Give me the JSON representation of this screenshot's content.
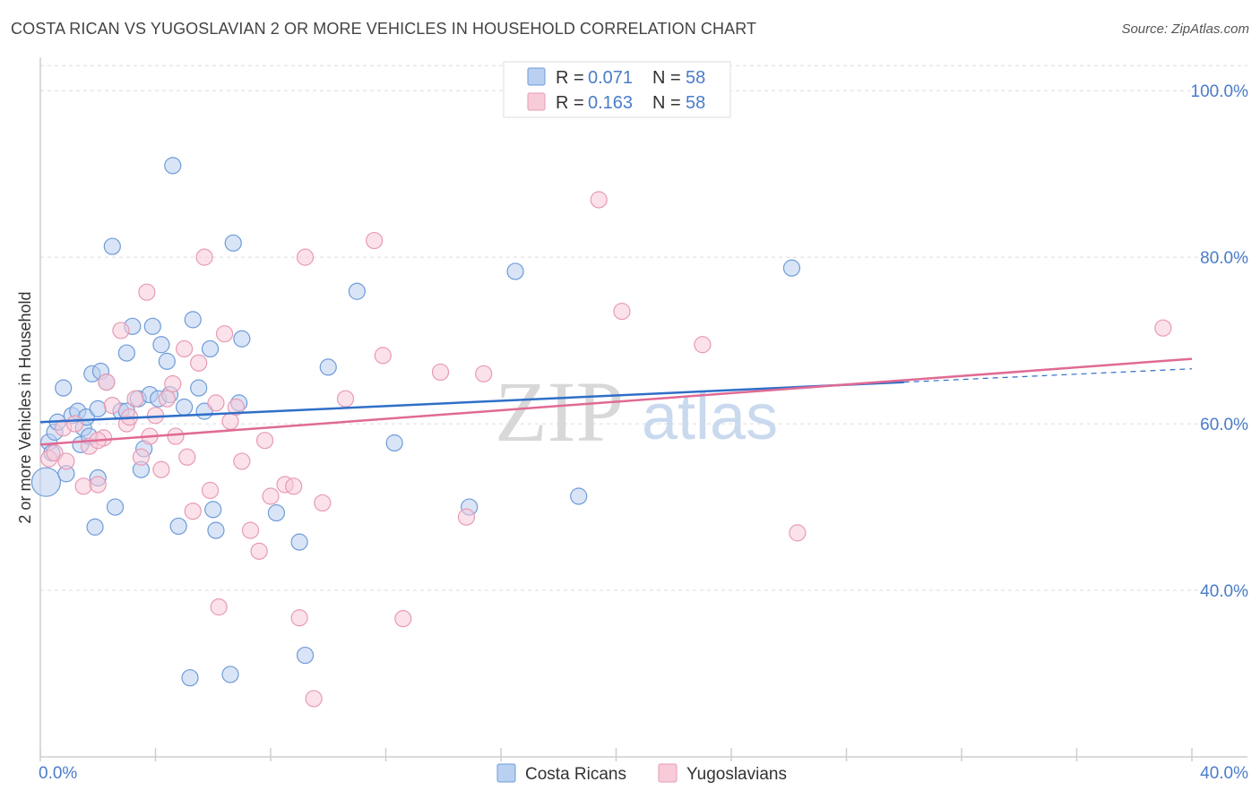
{
  "header": {
    "title": "COSTA RICAN VS YUGOSLAVIAN 2 OR MORE VEHICLES IN HOUSEHOLD CORRELATION CHART",
    "source": "Source: ZipAtlas.com"
  },
  "watermark": {
    "zip": "ZIP",
    "atlas": "atlas"
  },
  "chart_data": {
    "type": "scatter",
    "title": "COSTA RICAN VS YUGOSLAVIAN 2 OR MORE VEHICLES IN HOUSEHOLD CORRELATION CHART",
    "xlabel": "",
    "ylabel": "2 or more Vehicles in Household",
    "xlim": [
      0,
      40
    ],
    "ylim": [
      20,
      104
    ],
    "x_tick_labels": [
      "0.0%",
      "40.0%"
    ],
    "y_ticks": [
      40,
      60,
      80,
      100
    ],
    "y_tick_labels": [
      "40.0%",
      "60.0%",
      "80.0%",
      "100.0%"
    ],
    "grid": true,
    "legend_position": "top-center",
    "stats": [
      {
        "r_label": "R =",
        "r_value": "0.071",
        "n_label": "N =",
        "n_value": "58"
      },
      {
        "r_label": "R =",
        "r_value": "0.163",
        "n_label": "N =",
        "n_value": "58"
      }
    ],
    "series": [
      {
        "name": "Costa Ricans",
        "color": "#6e9bd8",
        "fill": "#b9d0f1",
        "trend": {
          "x0": 0,
          "y0": 60.2,
          "x1": 30,
          "y1": 65.0,
          "dash_to_x": 40,
          "dash_to_y": 66.6
        },
        "points": [
          [
            0.2,
            53
          ],
          [
            0.3,
            57.8
          ],
          [
            0.4,
            56.5
          ],
          [
            0.5,
            59
          ],
          [
            0.6,
            60.2
          ],
          [
            0.8,
            64.3
          ],
          [
            0.9,
            54
          ],
          [
            1.1,
            61
          ],
          [
            1.3,
            61.5
          ],
          [
            1.4,
            57.5
          ],
          [
            1.5,
            59.5
          ],
          [
            1.6,
            60.8
          ],
          [
            1.7,
            58.5
          ],
          [
            1.8,
            66
          ],
          [
            1.9,
            47.6
          ],
          [
            2.0,
            53.5
          ],
          [
            2.0,
            61.8
          ],
          [
            2.1,
            66.3
          ],
          [
            2.3,
            65
          ],
          [
            2.5,
            81.3
          ],
          [
            2.6,
            50
          ],
          [
            2.8,
            61.5
          ],
          [
            3.0,
            68.5
          ],
          [
            3.2,
            71.7
          ],
          [
            3.4,
            63
          ],
          [
            3.5,
            54.5
          ],
          [
            3.6,
            57
          ],
          [
            3.8,
            63.5
          ],
          [
            3.9,
            71.7
          ],
          [
            4.1,
            63
          ],
          [
            4.2,
            69.5
          ],
          [
            4.4,
            67.5
          ],
          [
            4.6,
            91
          ],
          [
            4.8,
            47.7
          ],
          [
            5.0,
            62
          ],
          [
            5.2,
            29.5
          ],
          [
            5.3,
            72.5
          ],
          [
            5.5,
            64.3
          ],
          [
            5.7,
            61.5
          ],
          [
            5.9,
            69
          ],
          [
            6.0,
            49.7
          ],
          [
            6.1,
            47.2
          ],
          [
            6.6,
            29.9
          ],
          [
            6.7,
            81.7
          ],
          [
            6.9,
            62.5
          ],
          [
            7.0,
            70.2
          ],
          [
            8.2,
            49.3
          ],
          [
            9.0,
            45.8
          ],
          [
            9.2,
            32.2
          ],
          [
            10.0,
            66.8
          ],
          [
            11.0,
            75.9
          ],
          [
            12.3,
            57.7
          ],
          [
            14.9,
            50
          ],
          [
            16.5,
            78.3
          ],
          [
            18.7,
            51.3
          ],
          [
            26.1,
            78.7
          ],
          [
            3.0,
            61.5
          ],
          [
            4.5,
            63.5
          ]
        ]
      },
      {
        "name": "Yugoslavians",
        "color": "#e89ab4",
        "fill": "#f8cbd9",
        "trend": {
          "x0": 0,
          "y0": 57.5,
          "x1": 40,
          "y1": 67.8
        },
        "points": [
          [
            0.3,
            55.8
          ],
          [
            0.5,
            56.5
          ],
          [
            0.8,
            59.5
          ],
          [
            0.9,
            55.5
          ],
          [
            1.2,
            60
          ],
          [
            1.5,
            52.5
          ],
          [
            1.7,
            57.3
          ],
          [
            2.0,
            52.7
          ],
          [
            2.2,
            58.3
          ],
          [
            2.3,
            65
          ],
          [
            2.5,
            62.2
          ],
          [
            2.8,
            71.2
          ],
          [
            3.0,
            60
          ],
          [
            3.1,
            60.8
          ],
          [
            3.3,
            63
          ],
          [
            3.5,
            56
          ],
          [
            3.7,
            75.8
          ],
          [
            3.8,
            58.5
          ],
          [
            4.0,
            61
          ],
          [
            4.2,
            54.5
          ],
          [
            4.4,
            63
          ],
          [
            4.6,
            64.8
          ],
          [
            4.7,
            58.5
          ],
          [
            5.0,
            69
          ],
          [
            5.1,
            56
          ],
          [
            5.3,
            49.5
          ],
          [
            5.5,
            67.3
          ],
          [
            5.7,
            80
          ],
          [
            5.9,
            52
          ],
          [
            6.1,
            62.5
          ],
          [
            6.2,
            38
          ],
          [
            6.4,
            70.8
          ],
          [
            6.6,
            60.3
          ],
          [
            6.8,
            62
          ],
          [
            7.0,
            55.5
          ],
          [
            7.3,
            47.2
          ],
          [
            7.6,
            44.7
          ],
          [
            7.8,
            58
          ],
          [
            8.0,
            51.3
          ],
          [
            8.5,
            52.7
          ],
          [
            8.8,
            52.5
          ],
          [
            9.0,
            36.7
          ],
          [
            9.2,
            80
          ],
          [
            9.5,
            27
          ],
          [
            9.8,
            50.5
          ],
          [
            10.6,
            63
          ],
          [
            11.6,
            82
          ],
          [
            11.9,
            68.2
          ],
          [
            12.6,
            36.6
          ],
          [
            13.9,
            66.2
          ],
          [
            14.8,
            48.8
          ],
          [
            15.4,
            66
          ],
          [
            19.4,
            86.9
          ],
          [
            20.2,
            73.5
          ],
          [
            23.0,
            69.5
          ],
          [
            26.3,
            46.9
          ],
          [
            39.0,
            71.5
          ],
          [
            2.0,
            58
          ]
        ]
      }
    ]
  }
}
